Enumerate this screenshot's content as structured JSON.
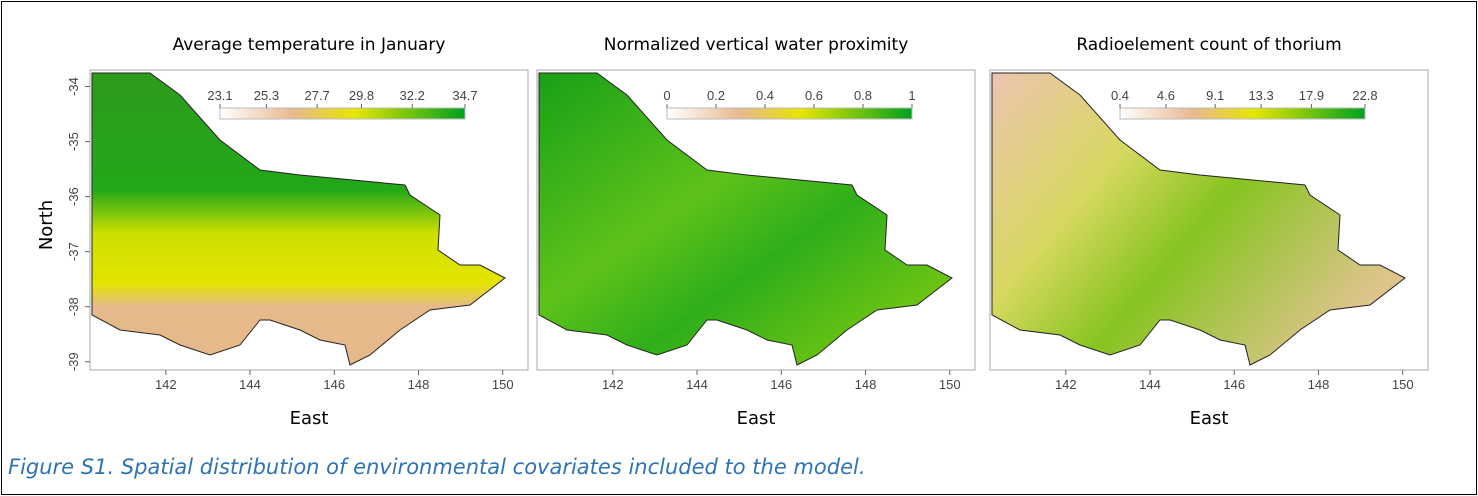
{
  "panels": [
    {
      "title": "Average temperature in January",
      "x_label": "East",
      "xlim": [
        140.2,
        150.6
      ],
      "xticks": [
        142,
        144,
        146,
        148,
        150
      ],
      "ylim": [
        -39.15,
        -33.7
      ],
      "yticks": [
        -34,
        -35,
        -36,
        -37,
        -38,
        -39
      ],
      "colorbar": {
        "ticks": [
          23.1,
          25.3,
          27.7,
          29.8,
          32.2,
          34.7
        ]
      }
    },
    {
      "title": "Normalized vertical water proximity",
      "x_label": "East",
      "xlim": [
        140.2,
        150.6
      ],
      "xticks": [
        142,
        144,
        146,
        148,
        150
      ],
      "colorbar": {
        "ticks": [
          0,
          0.2,
          0.4,
          0.6,
          0.8,
          1
        ]
      }
    },
    {
      "title": "Radioelement count of thorium",
      "x_label": "East",
      "xlim": [
        140.2,
        150.6
      ],
      "xticks": [
        142,
        144,
        146,
        148,
        150
      ],
      "colorbar": {
        "ticks": [
          0.4,
          4.6,
          9.1,
          13.3,
          17.9,
          22.8
        ]
      }
    }
  ],
  "y_label": "North",
  "caption": "Figure S1. Spatial distribution of environmental covariates included to the model."
}
